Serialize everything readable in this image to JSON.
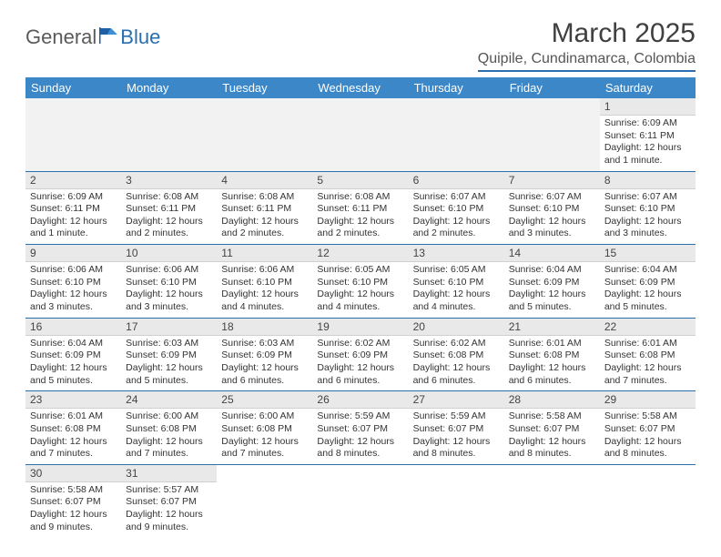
{
  "logo": {
    "textA": "General",
    "textB": "Blue"
  },
  "title": "March 2025",
  "location": "Quipile, Cundinamarca, Colombia",
  "dayHeaders": [
    "Sunday",
    "Monday",
    "Tuesday",
    "Wednesday",
    "Thursday",
    "Friday",
    "Saturday"
  ],
  "colors": {
    "headerBg": "#3b87c8",
    "accent": "#2a6fb0",
    "dayBar": "#e9e9e9"
  },
  "weeks": [
    [
      {
        "n": "",
        "sr": "",
        "ss": "",
        "dl": ""
      },
      {
        "n": "",
        "sr": "",
        "ss": "",
        "dl": ""
      },
      {
        "n": "",
        "sr": "",
        "ss": "",
        "dl": ""
      },
      {
        "n": "",
        "sr": "",
        "ss": "",
        "dl": ""
      },
      {
        "n": "",
        "sr": "",
        "ss": "",
        "dl": ""
      },
      {
        "n": "",
        "sr": "",
        "ss": "",
        "dl": ""
      },
      {
        "n": "1",
        "sr": "Sunrise: 6:09 AM",
        "ss": "Sunset: 6:11 PM",
        "dl": "Daylight: 12 hours and 1 minute."
      }
    ],
    [
      {
        "n": "2",
        "sr": "Sunrise: 6:09 AM",
        "ss": "Sunset: 6:11 PM",
        "dl": "Daylight: 12 hours and 1 minute."
      },
      {
        "n": "3",
        "sr": "Sunrise: 6:08 AM",
        "ss": "Sunset: 6:11 PM",
        "dl": "Daylight: 12 hours and 2 minutes."
      },
      {
        "n": "4",
        "sr": "Sunrise: 6:08 AM",
        "ss": "Sunset: 6:11 PM",
        "dl": "Daylight: 12 hours and 2 minutes."
      },
      {
        "n": "5",
        "sr": "Sunrise: 6:08 AM",
        "ss": "Sunset: 6:11 PM",
        "dl": "Daylight: 12 hours and 2 minutes."
      },
      {
        "n": "6",
        "sr": "Sunrise: 6:07 AM",
        "ss": "Sunset: 6:10 PM",
        "dl": "Daylight: 12 hours and 2 minutes."
      },
      {
        "n": "7",
        "sr": "Sunrise: 6:07 AM",
        "ss": "Sunset: 6:10 PM",
        "dl": "Daylight: 12 hours and 3 minutes."
      },
      {
        "n": "8",
        "sr": "Sunrise: 6:07 AM",
        "ss": "Sunset: 6:10 PM",
        "dl": "Daylight: 12 hours and 3 minutes."
      }
    ],
    [
      {
        "n": "9",
        "sr": "Sunrise: 6:06 AM",
        "ss": "Sunset: 6:10 PM",
        "dl": "Daylight: 12 hours and 3 minutes."
      },
      {
        "n": "10",
        "sr": "Sunrise: 6:06 AM",
        "ss": "Sunset: 6:10 PM",
        "dl": "Daylight: 12 hours and 3 minutes."
      },
      {
        "n": "11",
        "sr": "Sunrise: 6:06 AM",
        "ss": "Sunset: 6:10 PM",
        "dl": "Daylight: 12 hours and 4 minutes."
      },
      {
        "n": "12",
        "sr": "Sunrise: 6:05 AM",
        "ss": "Sunset: 6:10 PM",
        "dl": "Daylight: 12 hours and 4 minutes."
      },
      {
        "n": "13",
        "sr": "Sunrise: 6:05 AM",
        "ss": "Sunset: 6:10 PM",
        "dl": "Daylight: 12 hours and 4 minutes."
      },
      {
        "n": "14",
        "sr": "Sunrise: 6:04 AM",
        "ss": "Sunset: 6:09 PM",
        "dl": "Daylight: 12 hours and 5 minutes."
      },
      {
        "n": "15",
        "sr": "Sunrise: 6:04 AM",
        "ss": "Sunset: 6:09 PM",
        "dl": "Daylight: 12 hours and 5 minutes."
      }
    ],
    [
      {
        "n": "16",
        "sr": "Sunrise: 6:04 AM",
        "ss": "Sunset: 6:09 PM",
        "dl": "Daylight: 12 hours and 5 minutes."
      },
      {
        "n": "17",
        "sr": "Sunrise: 6:03 AM",
        "ss": "Sunset: 6:09 PM",
        "dl": "Daylight: 12 hours and 5 minutes."
      },
      {
        "n": "18",
        "sr": "Sunrise: 6:03 AM",
        "ss": "Sunset: 6:09 PM",
        "dl": "Daylight: 12 hours and 6 minutes."
      },
      {
        "n": "19",
        "sr": "Sunrise: 6:02 AM",
        "ss": "Sunset: 6:09 PM",
        "dl": "Daylight: 12 hours and 6 minutes."
      },
      {
        "n": "20",
        "sr": "Sunrise: 6:02 AM",
        "ss": "Sunset: 6:08 PM",
        "dl": "Daylight: 12 hours and 6 minutes."
      },
      {
        "n": "21",
        "sr": "Sunrise: 6:01 AM",
        "ss": "Sunset: 6:08 PM",
        "dl": "Daylight: 12 hours and 6 minutes."
      },
      {
        "n": "22",
        "sr": "Sunrise: 6:01 AM",
        "ss": "Sunset: 6:08 PM",
        "dl": "Daylight: 12 hours and 7 minutes."
      }
    ],
    [
      {
        "n": "23",
        "sr": "Sunrise: 6:01 AM",
        "ss": "Sunset: 6:08 PM",
        "dl": "Daylight: 12 hours and 7 minutes."
      },
      {
        "n": "24",
        "sr": "Sunrise: 6:00 AM",
        "ss": "Sunset: 6:08 PM",
        "dl": "Daylight: 12 hours and 7 minutes."
      },
      {
        "n": "25",
        "sr": "Sunrise: 6:00 AM",
        "ss": "Sunset: 6:08 PM",
        "dl": "Daylight: 12 hours and 7 minutes."
      },
      {
        "n": "26",
        "sr": "Sunrise: 5:59 AM",
        "ss": "Sunset: 6:07 PM",
        "dl": "Daylight: 12 hours and 8 minutes."
      },
      {
        "n": "27",
        "sr": "Sunrise: 5:59 AM",
        "ss": "Sunset: 6:07 PM",
        "dl": "Daylight: 12 hours and 8 minutes."
      },
      {
        "n": "28",
        "sr": "Sunrise: 5:58 AM",
        "ss": "Sunset: 6:07 PM",
        "dl": "Daylight: 12 hours and 8 minutes."
      },
      {
        "n": "29",
        "sr": "Sunrise: 5:58 AM",
        "ss": "Sunset: 6:07 PM",
        "dl": "Daylight: 12 hours and 8 minutes."
      }
    ],
    [
      {
        "n": "30",
        "sr": "Sunrise: 5:58 AM",
        "ss": "Sunset: 6:07 PM",
        "dl": "Daylight: 12 hours and 9 minutes."
      },
      {
        "n": "31",
        "sr": "Sunrise: 5:57 AM",
        "ss": "Sunset: 6:07 PM",
        "dl": "Daylight: 12 hours and 9 minutes."
      },
      {
        "n": "",
        "sr": "",
        "ss": "",
        "dl": ""
      },
      {
        "n": "",
        "sr": "",
        "ss": "",
        "dl": ""
      },
      {
        "n": "",
        "sr": "",
        "ss": "",
        "dl": ""
      },
      {
        "n": "",
        "sr": "",
        "ss": "",
        "dl": ""
      },
      {
        "n": "",
        "sr": "",
        "ss": "",
        "dl": ""
      }
    ]
  ]
}
